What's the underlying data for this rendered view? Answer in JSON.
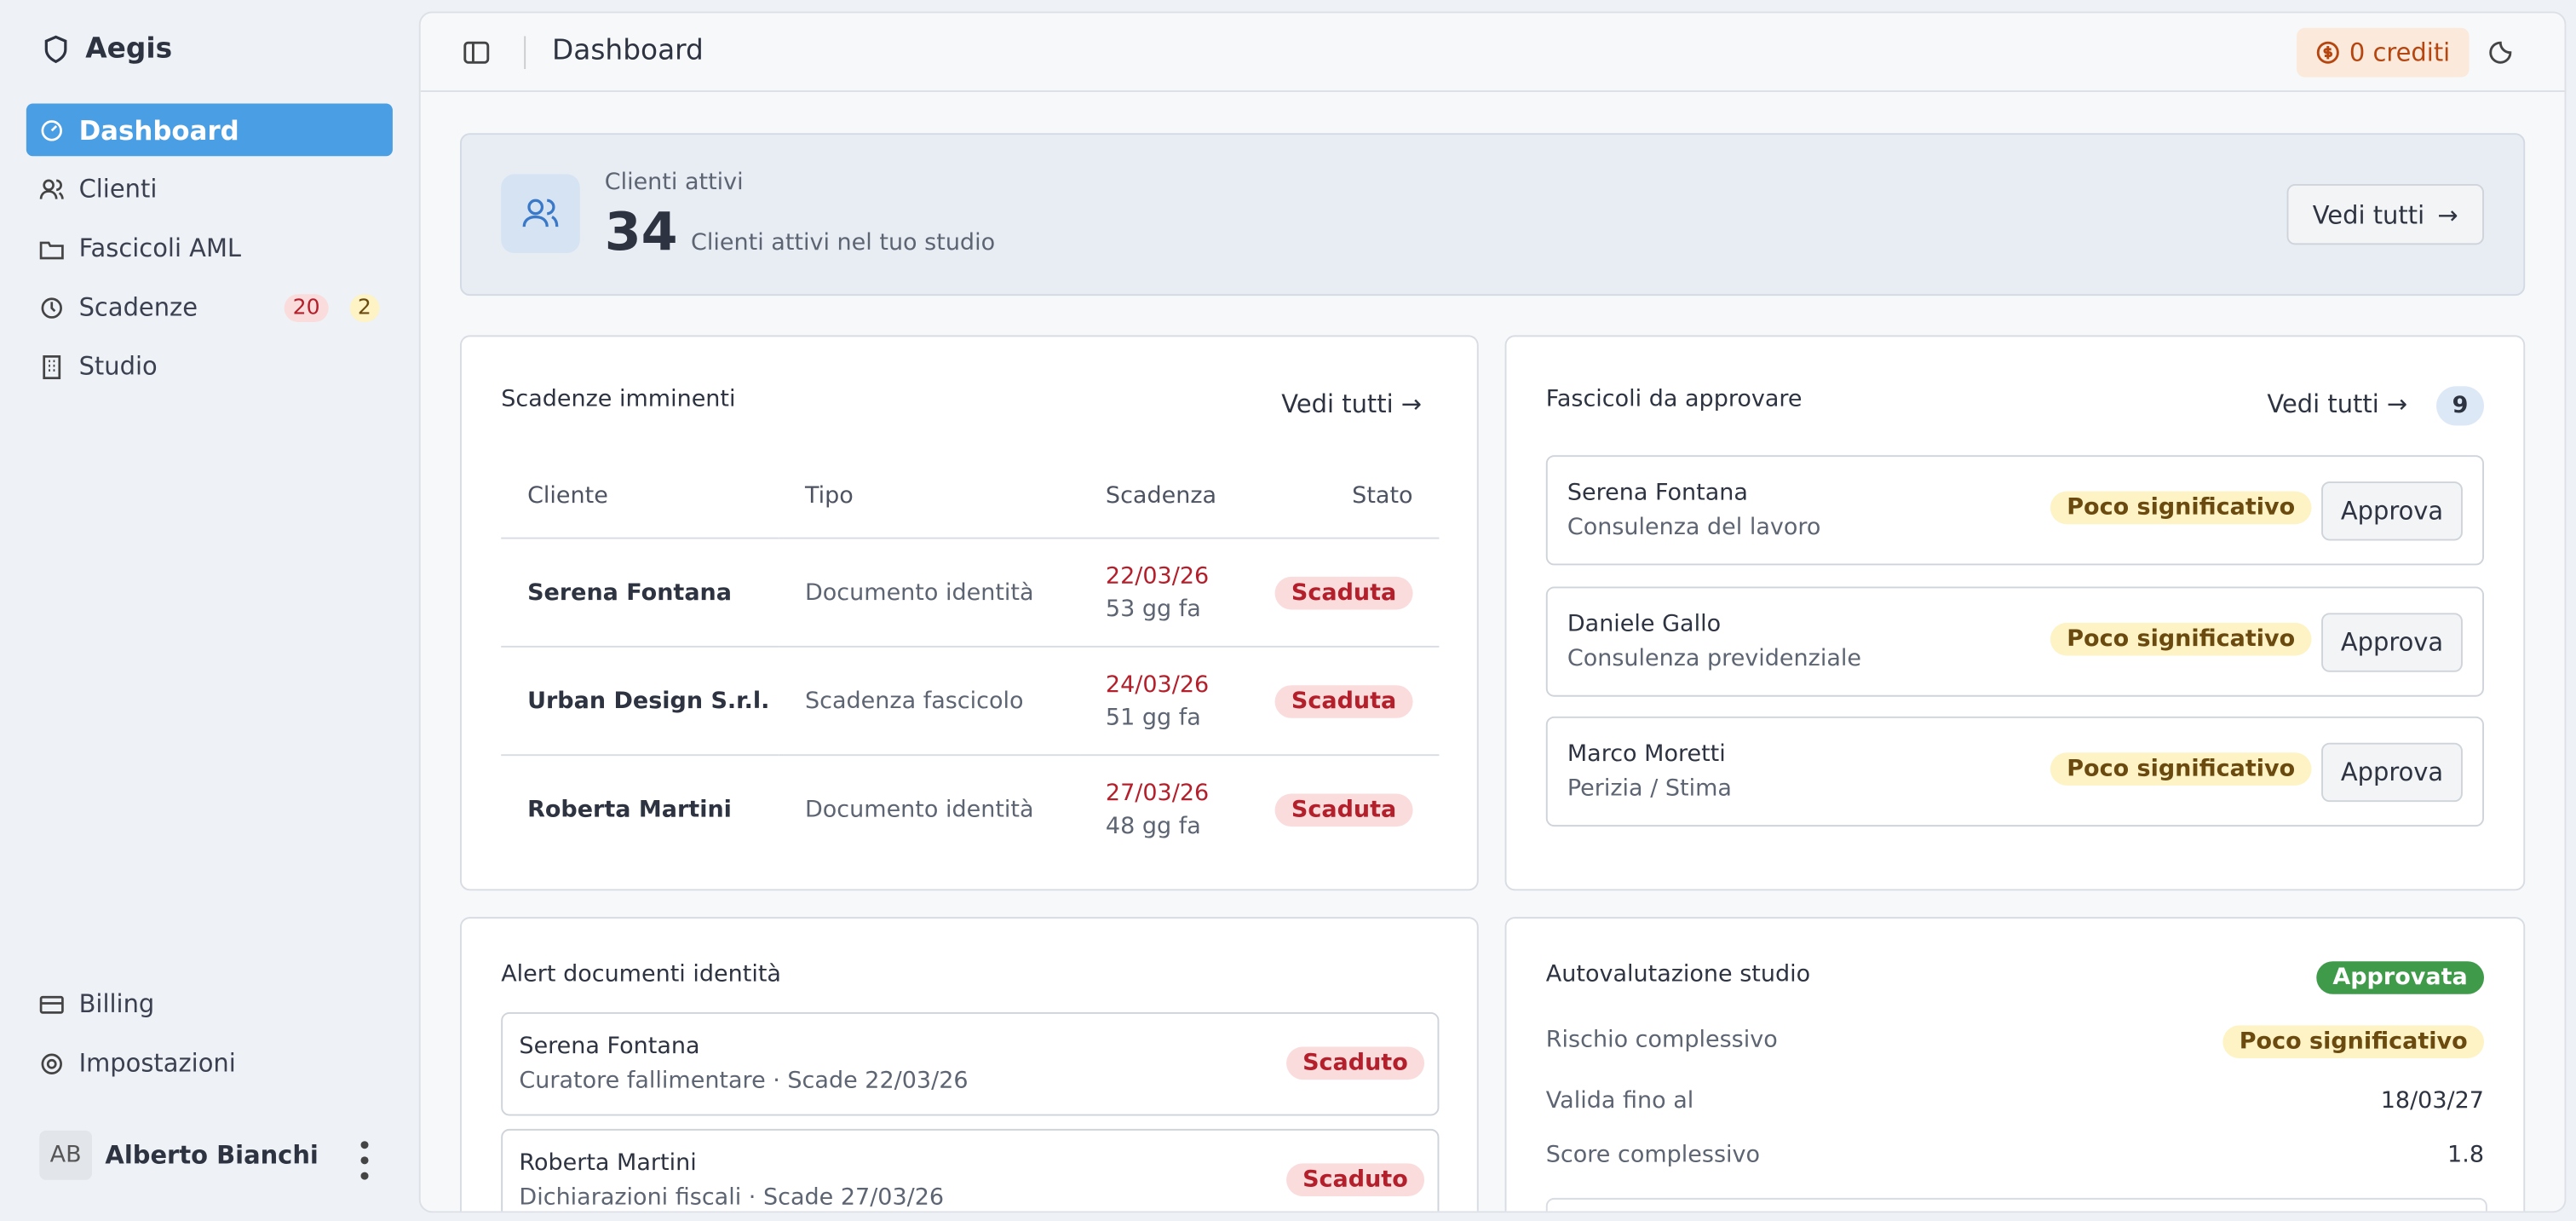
{
  "sidebar": {
    "brand": "Aegis",
    "nav": [
      {
        "label": "Dashboard"
      },
      {
        "label": "Clienti"
      },
      {
        "label": "Fascicoli AML"
      },
      {
        "label": "Scadenze",
        "badges": [
          "20",
          "2"
        ]
      },
      {
        "label": "Studio"
      }
    ],
    "bottom_nav": [
      "Billing",
      "Impostazioni"
    ],
    "user": {
      "initials": "AB",
      "name": "Alberto Bianchi"
    }
  },
  "header": {
    "title": "Dashboard",
    "credits": "0 crediti"
  },
  "summary": {
    "label": "Clienti attivi",
    "count": 34,
    "description": "Clienti attivi nel tuo studio",
    "action": "Vedi tutti"
  },
  "deadlines": {
    "title": "Scadenze imminenti",
    "action": "Vedi tutti",
    "columns": [
      "Cliente",
      "Tipo",
      "Scadenza",
      "Stato"
    ],
    "rows": [
      {
        "client": "Serena Fontana",
        "type": "Documento identità",
        "date": "22/03/26",
        "ago": "53 gg fa",
        "status": "Scaduta"
      },
      {
        "client": "Urban Design S.r.l.",
        "type": "Scadenza fascicolo",
        "date": "24/03/26",
        "ago": "51 gg fa",
        "status": "Scaduta"
      },
      {
        "client": "Roberta Martini",
        "type": "Documento identità",
        "date": "27/03/26",
        "ago": "48 gg fa",
        "status": "Scaduta"
      }
    ]
  },
  "approvals": {
    "title": "Fascicoli da approvare",
    "action": "Vedi tutti",
    "count": 9,
    "items": [
      {
        "name": "Serena Fontana",
        "service": "Consulenza del lavoro",
        "risk": "Poco significativo",
        "action": "Approva"
      },
      {
        "name": "Daniele Gallo",
        "service": "Consulenza previdenziale",
        "risk": "Poco significativo",
        "action": "Approva"
      },
      {
        "name": "Marco Moretti",
        "service": "Perizia / Stima",
        "risk": "Poco significativo",
        "action": "Approva"
      }
    ]
  },
  "id_alerts": {
    "title": "Alert documenti identità",
    "items": [
      {
        "name": "Serena Fontana",
        "detail": "Curatore fallimentare · Scade 22/03/26",
        "status": "Scaduto"
      },
      {
        "name": "Roberta Martini",
        "detail": "Dichiarazioni fiscali · Scade 27/03/26",
        "status": "Scaduto"
      }
    ]
  },
  "self_assessment": {
    "title": "Autovalutazione studio",
    "status": "Approvata",
    "rows": [
      {
        "label": "Rischio complessivo",
        "value": "Poco significativo"
      },
      {
        "label": "Valida fino al",
        "value": "18/03/27"
      },
      {
        "label": "Score complessivo",
        "value": "1.8"
      }
    ]
  }
}
